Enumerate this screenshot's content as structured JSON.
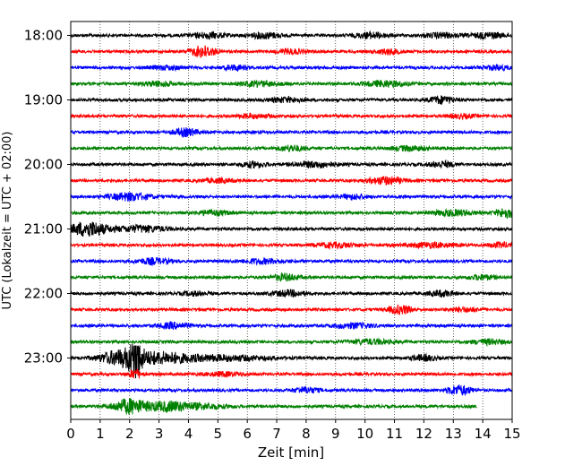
{
  "chart_data": {
    "type": "line",
    "xlabel": "Zeit  [min]",
    "ylabel": "UTC (Lokalzeit = UTC + 02:00)",
    "xlim": [
      0,
      15
    ],
    "x_ticks": [
      0,
      1,
      2,
      3,
      4,
      5,
      6,
      7,
      8,
      9,
      10,
      11,
      12,
      13,
      14,
      15
    ],
    "grid_x": "dotted",
    "row_minutes": 15,
    "y_ticks": [
      {
        "label": "18:00",
        "row": 0
      },
      {
        "label": "19:00",
        "row": 4
      },
      {
        "label": "20:00",
        "row": 8
      },
      {
        "label": "21:00",
        "row": 12
      },
      {
        "label": "22:00",
        "row": 16
      },
      {
        "label": "23:00",
        "row": 20
      }
    ],
    "color_cycle": [
      "#000000",
      "#ff0000",
      "#0000ff",
      "#008000"
    ],
    "rows": [
      {
        "start": "18:00",
        "end_min": 15,
        "events": [
          [
            4.7,
            0.4,
            3
          ],
          [
            6.6,
            0.4,
            3
          ],
          [
            10.2,
            0.4,
            3
          ],
          [
            12.6,
            0.4,
            2.5
          ],
          [
            14.2,
            0.4,
            3
          ]
        ]
      },
      {
        "start": "18:15",
        "end_min": 15,
        "events": [
          [
            4.5,
            0.3,
            6
          ],
          [
            7.5,
            0.3,
            2.5
          ],
          [
            10.8,
            0.3,
            2.5
          ]
        ]
      },
      {
        "start": "18:30",
        "end_min": 15,
        "events": [
          [
            3.3,
            0.4,
            2
          ],
          [
            5.6,
            0.3,
            2.5
          ],
          [
            14.5,
            0.3,
            2.5
          ]
        ]
      },
      {
        "start": "18:45",
        "end_min": 15,
        "events": [
          [
            3.0,
            0.4,
            2.5
          ],
          [
            6.4,
            0.5,
            2.5
          ],
          [
            10.7,
            0.5,
            3
          ]
        ]
      },
      {
        "start": "19:00",
        "end_min": 15,
        "events": [
          [
            7.3,
            0.4,
            2.5
          ],
          [
            12.6,
            0.3,
            4
          ]
        ]
      },
      {
        "start": "19:15",
        "end_min": 15,
        "events": [
          [
            6.2,
            0.4,
            2
          ],
          [
            13.3,
            0.3,
            2
          ]
        ]
      },
      {
        "start": "19:30",
        "end_min": 15,
        "events": [
          [
            3.9,
            0.3,
            4
          ]
        ]
      },
      {
        "start": "19:45",
        "end_min": 15,
        "events": [
          [
            7.5,
            0.3,
            3
          ],
          [
            11.5,
            0.4,
            2.5
          ]
        ]
      },
      {
        "start": "20:00",
        "end_min": 15,
        "events": [
          [
            6.2,
            0.3,
            3
          ],
          [
            8.3,
            0.5,
            3
          ],
          [
            12.6,
            0.3,
            3
          ]
        ]
      },
      {
        "start": "20:15",
        "end_min": 15,
        "events": [
          [
            10.7,
            0.4,
            4
          ],
          [
            5.0,
            0.4,
            2
          ]
        ]
      },
      {
        "start": "20:30",
        "end_min": 15,
        "events": [
          [
            2.0,
            0.5,
            4
          ],
          [
            9.6,
            0.3,
            2.5
          ]
        ]
      },
      {
        "start": "20:45",
        "end_min": 15,
        "events": [
          [
            4.8,
            0.4,
            2.5
          ],
          [
            13.0,
            0.5,
            3
          ],
          [
            14.8,
            0.25,
            5
          ]
        ]
      },
      {
        "start": "21:00",
        "end_min": 15,
        "events": [
          [
            0.6,
            0.45,
            8
          ],
          [
            2.4,
            0.6,
            3.5
          ]
        ]
      },
      {
        "start": "21:15",
        "end_min": 15,
        "events": [
          [
            9.0,
            0.5,
            2.5
          ],
          [
            12.2,
            0.6,
            2.5
          ],
          [
            14.6,
            0.3,
            2.5
          ]
        ]
      },
      {
        "start": "21:30",
        "end_min": 15,
        "events": [
          [
            2.8,
            0.4,
            3
          ],
          [
            6.5,
            0.5,
            2.5
          ]
        ]
      },
      {
        "start": "21:45",
        "end_min": 15,
        "events": [
          [
            7.3,
            0.3,
            3.5
          ],
          [
            14.0,
            0.3,
            2.5
          ]
        ]
      },
      {
        "start": "22:00",
        "end_min": 15,
        "events": [
          [
            7.4,
            0.4,
            3
          ],
          [
            12.6,
            0.3,
            3
          ],
          [
            4.2,
            0.3,
            2
          ]
        ]
      },
      {
        "start": "22:15",
        "end_min": 15,
        "events": [
          [
            11.2,
            0.3,
            4.5
          ],
          [
            13.4,
            0.4,
            2
          ]
        ]
      },
      {
        "start": "22:30",
        "end_min": 15,
        "events": [
          [
            3.5,
            0.4,
            3
          ],
          [
            9.6,
            0.5,
            2.5
          ]
        ]
      },
      {
        "start": "22:45",
        "end_min": 15,
        "events": [
          [
            10.2,
            0.5,
            2.5
          ],
          [
            14.2,
            0.4,
            2.5
          ]
        ]
      },
      {
        "start": "23:00",
        "end_min": 15,
        "events": [
          [
            1.8,
            0.55,
            9
          ],
          [
            2.2,
            0.15,
            14
          ],
          [
            3.1,
            0.6,
            5
          ],
          [
            5.0,
            1.2,
            3
          ],
          [
            12.0,
            0.3,
            3
          ]
        ]
      },
      {
        "start": "23:15",
        "end_min": 15,
        "events": [
          [
            2.2,
            0.15,
            5
          ],
          [
            5.2,
            0.5,
            2
          ]
        ]
      },
      {
        "start": "23:30",
        "end_min": 15,
        "events": [
          [
            8.0,
            0.3,
            3
          ],
          [
            13.2,
            0.3,
            5
          ]
        ]
      },
      {
        "start": "23:45",
        "end_min": 13.8,
        "events": [
          [
            2.0,
            0.4,
            8
          ],
          [
            3.3,
            0.5,
            5
          ],
          [
            4.5,
            0.6,
            2.5
          ]
        ]
      }
    ]
  }
}
